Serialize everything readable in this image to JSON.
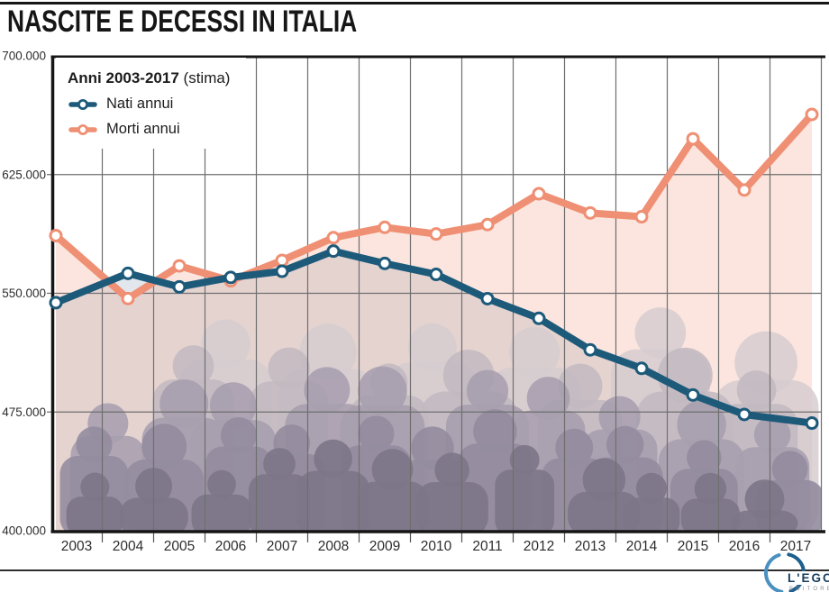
{
  "page": {
    "title": "NASCITE E DECESSI IN ITALIA"
  },
  "legend": {
    "title_bold": "Anni 2003-2017",
    "title_note": "(stima)",
    "items": [
      {
        "label": "Nati annui",
        "color": "#1d5a7a"
      },
      {
        "label": "Morti annui",
        "color": "#ef8f73"
      }
    ]
  },
  "chart_data": {
    "type": "line",
    "title": "NASCITE E DECESSI IN ITALIA",
    "subtitle": "Anni 2003-2017 (stima)",
    "categories": [
      "2003",
      "2004",
      "2005",
      "2006",
      "2007",
      "2008",
      "2009",
      "2010",
      "2011",
      "2012",
      "2013",
      "2014",
      "2015",
      "2016",
      "2017"
    ],
    "series": [
      {
        "name": "Nati annui",
        "color": "#1d5a7a",
        "fill": "rgba(185,198,212,0.42)",
        "values": [
          544063,
          562599,
          554022,
          560010,
          563933,
          576659,
          568857,
          561944,
          546585,
          534186,
          514308,
          502596,
          485780,
          473438,
          468000
        ]
      },
      {
        "name": "Morti annui",
        "color": "#ef8f73",
        "fill": "rgba(240,151,123,0.25)",
        "values": [
          586468,
          546658,
          567304,
          557892,
          570801,
          585126,
          591663,
          587488,
          593402,
          612883,
          600744,
          598364,
          647571,
          615261,
          663000
        ]
      }
    ],
    "ylim": [
      400000,
      700000
    ],
    "yticks": {
      "values": [
        700000,
        625000,
        550000,
        475000,
        400000
      ],
      "labels": [
        "700.000",
        "625.000",
        "550.000",
        "475.000",
        "400.000"
      ]
    },
    "grid": true,
    "legend_position": "top-left",
    "marker": "open-circle"
  },
  "decor": {
    "crowd_palette": [
      "#d6ccd0",
      "#c2b8c1",
      "#a79eae",
      "#938c9f",
      "#7d7689"
    ],
    "gridline_color": "#6f6f6f",
    "axis_color": "#161616"
  },
  "footer": {
    "logo_text": "L'EGO",
    "logo_subtext": "EDITORE",
    "logo_arc_dark": "#1d5f8e",
    "logo_arc_light": "#4a90c0"
  }
}
